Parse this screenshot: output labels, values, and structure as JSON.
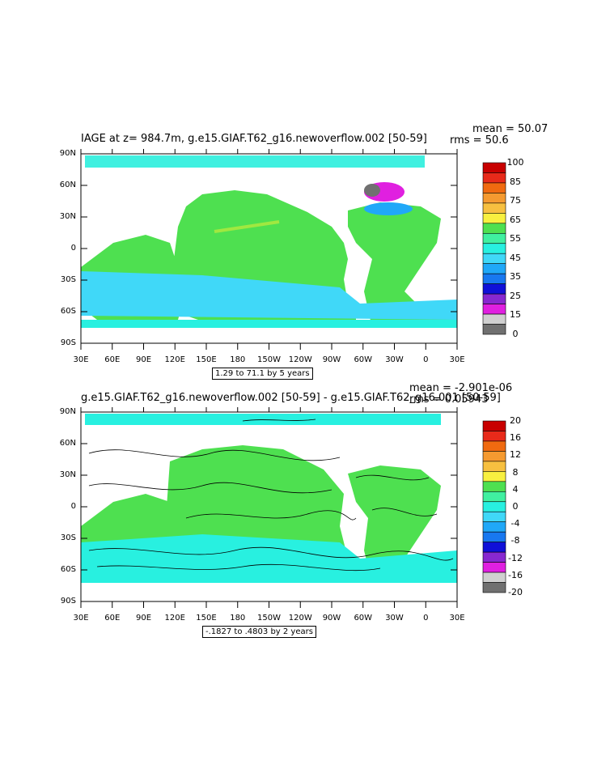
{
  "panels": [
    {
      "title": "IAGE at z= 984.7m, g.e15.GIAF.T62_g16.newoverflow.002 [50-59]",
      "mean": "mean = 50.07",
      "rms": "rms = 50.6",
      "caption": "1.29 to 71.1 by 5 years",
      "y_ticks": [
        "90N",
        "60N",
        "30N",
        "0",
        "30S",
        "60S",
        "90S"
      ],
      "x_ticks": [
        "30E",
        "60E",
        "90E",
        "120E",
        "150E",
        "180",
        "150W",
        "120W",
        "90W",
        "60W",
        "30W",
        "0",
        "30E"
      ],
      "colorbar_labels": [
        "100",
        "85",
        "75",
        "65",
        "55",
        "45",
        "35",
        "25",
        "15",
        "0"
      ],
      "colorbar_colors": [
        "#c80000",
        "#e82a1a",
        "#f06a10",
        "#f59a30",
        "#f7c040",
        "#f8f040",
        "#4ee050",
        "#40f0a0",
        "#28f0e0",
        "#40d8f8",
        "#20a8f8",
        "#1878f0",
        "#1010d8",
        "#8828d0",
        "#e020e0",
        "#d0d0d0",
        "#707070"
      ]
    },
    {
      "title": "g.e15.GIAF.T62_g16.newoverflow.002 [50-59] - g.e15.GIAF.T62_g16.001 [50-59]",
      "mean": "mean = -2.901e-06",
      "rms": "rms = 0.05943",
      "caption": "-.1827 to .4803 by 2 years",
      "y_ticks": [
        "90N",
        "60N",
        "30N",
        "0",
        "30S",
        "60S",
        "90S"
      ],
      "x_ticks": [
        "30E",
        "60E",
        "90E",
        "120E",
        "150E",
        "180",
        "150W",
        "120W",
        "90W",
        "60W",
        "30W",
        "0",
        "30E"
      ],
      "colorbar_labels": [
        "20",
        "16",
        "12",
        "8",
        "4",
        "0",
        "-4",
        "-8",
        "-12",
        "-16",
        "-20"
      ],
      "colorbar_colors": [
        "#c80000",
        "#e82a1a",
        "#f06a10",
        "#f59a30",
        "#f7c040",
        "#f8f040",
        "#4ee050",
        "#40f0a0",
        "#28f0e0",
        "#40d8f8",
        "#20a8f8",
        "#1878f0",
        "#1010d8",
        "#8828d0",
        "#e020e0",
        "#d0d0d0",
        "#707070"
      ]
    }
  ]
}
